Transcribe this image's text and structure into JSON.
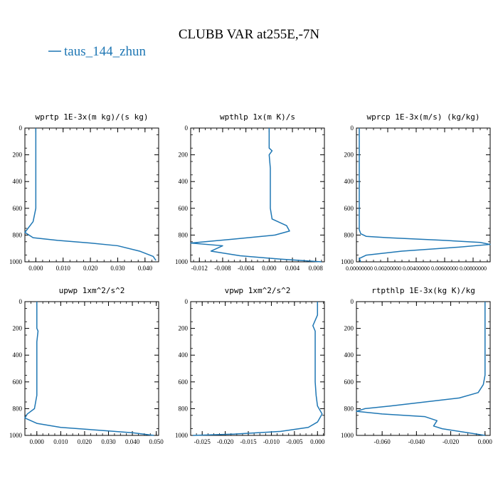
{
  "title": "CLUBB VAR at255E,-7N",
  "legend": {
    "label": "taus_144_zhun",
    "color": "#1f77b4",
    "placement": "top-left"
  },
  "chart_data": [
    {
      "type": "line",
      "title": "wprtp  1E-3x(m kg)/(s kg)",
      "xlim": [
        -0.004,
        0.045
      ],
      "ylim": [
        1000,
        0
      ],
      "xticks": [
        0.0,
        0.01,
        0.02,
        0.03,
        0.04
      ],
      "xticklabels": [
        "0.000",
        "0.010",
        "0.020",
        "0.030",
        "0.040"
      ],
      "yticks": [
        0,
        200,
        400,
        600,
        800,
        1000
      ],
      "yticklabels": [
        "0",
        "200",
        "400",
        "600",
        "800",
        "1000"
      ],
      "series": [
        {
          "name": "taus_144_zhun",
          "x": [
            0.0,
            0.0,
            0.0,
            0.0,
            0.0,
            0.0,
            0.0,
            -0.001,
            -0.004,
            -0.001,
            0.008,
            0.02,
            0.03,
            0.038,
            0.043,
            0.044
          ],
          "y": [
            0,
            100,
            200,
            300,
            400,
            500,
            600,
            700,
            780,
            820,
            840,
            860,
            880,
            920,
            960,
            990
          ]
        }
      ]
    },
    {
      "type": "line",
      "title": "wpthlp  1x(m K)/s",
      "xlim": [
        -0.0135,
        0.0095
      ],
      "ylim": [
        1000,
        0
      ],
      "xticks": [
        -0.012,
        -0.008,
        -0.004,
        0.0,
        0.004,
        0.008
      ],
      "xticklabels": [
        "-0.012",
        "-0.008",
        "-0.004",
        "0.000",
        "0.004",
        "0.008"
      ],
      "yticks": [
        0,
        200,
        400,
        600,
        800,
        1000
      ],
      "yticklabels": [
        "0",
        "200",
        "400",
        "600",
        "800",
        "1000"
      ],
      "series": [
        {
          "name": "taus_144_zhun",
          "x": [
            0.0,
            0.0,
            0.0,
            0.0005,
            0.0,
            0.0002,
            0.0002,
            0.0002,
            0.0002,
            0.0005,
            0.003,
            0.0035,
            0.001,
            -0.006,
            -0.0135,
            -0.008,
            -0.01,
            -0.005,
            0.002,
            0.009
          ],
          "y": [
            0,
            80,
            150,
            170,
            200,
            300,
            400,
            500,
            600,
            680,
            730,
            770,
            800,
            830,
            860,
            880,
            920,
            955,
            980,
            1000
          ]
        }
      ]
    },
    {
      "type": "line",
      "title": "wprcp  1E-3x(m/s) (kg/kg)",
      "xlim": [
        -0.0002,
        0.0092
      ],
      "ylim": [
        1000,
        0
      ],
      "xticks": [
        0.0,
        0.002,
        0.004,
        0.006,
        0.008
      ],
      "xticklabels": [
        "0.00000000",
        "0.00200000",
        "0.00400000",
        "0.00600000",
        "0.00800000"
      ],
      "yticks": [
        0,
        200,
        400,
        600,
        800,
        1000
      ],
      "yticklabels": [
        "0",
        "200",
        "400",
        "600",
        "800",
        "1000"
      ],
      "series": [
        {
          "name": "taus_144_zhun",
          "x": [
            0.0,
            0.0,
            0.0,
            0.0,
            0.0,
            0.0,
            0.0001,
            0.0005,
            0.002,
            0.006,
            0.0085,
            0.0092,
            0.007,
            0.003,
            0.0005,
            0.0,
            0.0001
          ],
          "y": [
            0,
            200,
            400,
            600,
            700,
            760,
            790,
            810,
            820,
            840,
            855,
            870,
            890,
            920,
            950,
            975,
            1000
          ]
        }
      ]
    },
    {
      "type": "line",
      "title": "upwp  1xm^2/s^2",
      "xlim": [
        -0.005,
        0.051
      ],
      "ylim": [
        1000,
        0
      ],
      "xticks": [
        0.0,
        0.01,
        0.02,
        0.03,
        0.04,
        0.05
      ],
      "xticklabels": [
        "0.000",
        "0.010",
        "0.020",
        "0.030",
        "0.040",
        "0.050"
      ],
      "yticks": [
        0,
        200,
        400,
        600,
        800,
        1000
      ],
      "yticklabels": [
        "0",
        "200",
        "400",
        "600",
        "800",
        "1000"
      ],
      "series": [
        {
          "name": "taus_144_zhun",
          "x": [
            0.0,
            0.0,
            0.0,
            0.0005,
            0.0,
            0.0,
            0.0,
            0.0,
            0.0,
            -0.001,
            -0.004,
            -0.005,
            0.0,
            0.01,
            0.025,
            0.04,
            0.049
          ],
          "y": [
            0,
            100,
            200,
            220,
            300,
            400,
            500,
            600,
            700,
            800,
            840,
            870,
            910,
            940,
            960,
            980,
            1000
          ]
        }
      ]
    },
    {
      "type": "line",
      "title": "vpwp  1xm^2/s^2",
      "xlim": [
        -0.0275,
        0.0015
      ],
      "ylim": [
        1000,
        0
      ],
      "xticks": [
        -0.025,
        -0.02,
        -0.015,
        -0.01,
        -0.005,
        0.0
      ],
      "xticklabels": [
        "-0.025",
        "-0.020",
        "-0.015",
        "-0.010",
        "-0.005",
        "0.000"
      ],
      "yticks": [
        0,
        200,
        400,
        600,
        800,
        1000
      ],
      "yticklabels": [
        "0",
        "200",
        "400",
        "600",
        "800",
        "1000"
      ],
      "series": [
        {
          "name": "taus_144_zhun",
          "x": [
            0.0,
            0.0,
            -0.0005,
            -0.001,
            -0.0005,
            -0.0005,
            -0.0005,
            -0.0005,
            -0.0005,
            -0.0003,
            0.0,
            0.001,
            0.0,
            -0.002,
            -0.008,
            -0.018,
            -0.027
          ],
          "y": [
            0,
            100,
            140,
            180,
            220,
            300,
            400,
            500,
            600,
            700,
            780,
            840,
            900,
            940,
            970,
            990,
            1000
          ]
        }
      ]
    },
    {
      "type": "line",
      "title": "rtpthlp  1E-3x(kg K)/kg",
      "xlim": [
        -0.075,
        0.003
      ],
      "ylim": [
        1000,
        0
      ],
      "xticks": [
        -0.06,
        -0.04,
        -0.02,
        0.0
      ],
      "xticklabels": [
        "-0.060",
        "-0.040",
        "-0.020",
        "0.000"
      ],
      "yticks": [
        0,
        200,
        400,
        600,
        800,
        1000
      ],
      "yticklabels": [
        "0",
        "200",
        "400",
        "600",
        "800",
        "1000"
      ],
      "series": [
        {
          "name": "taus_144_zhun",
          "x": [
            0.0,
            0.0,
            0.0,
            0.0,
            -0.001,
            -0.004,
            -0.015,
            -0.035,
            -0.055,
            -0.07,
            -0.075,
            -0.06,
            -0.035,
            -0.028,
            -0.03,
            -0.025,
            -0.01,
            0.0
          ],
          "y": [
            0,
            200,
            400,
            550,
            620,
            680,
            720,
            750,
            780,
            800,
            820,
            840,
            860,
            890,
            930,
            950,
            980,
            1000
          ]
        }
      ]
    }
  ]
}
